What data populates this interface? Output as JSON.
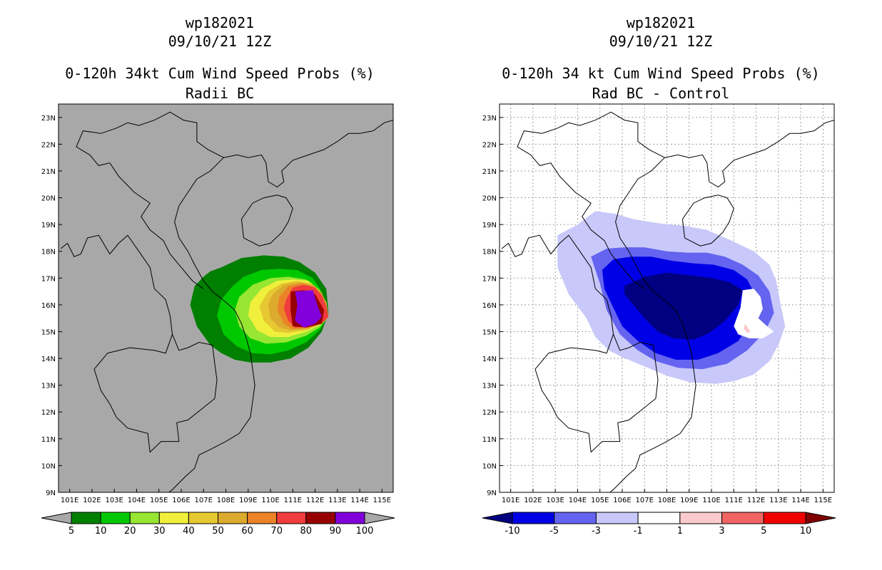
{
  "chart_data": [
    {
      "type": "heatmap",
      "panel": "left",
      "title_lines": [
        "wp182021",
        "09/10/21 12Z",
        "0-120h 34kt Cum Wind Speed Probs (%)",
        "Radii BC"
      ],
      "xlabels": [
        "101E",
        "102E",
        "103E",
        "104E",
        "105E",
        "106E",
        "107E",
        "108E",
        "109E",
        "110E",
        "111E",
        "112E",
        "113E",
        "114E",
        "115E"
      ],
      "ylabels": [
        "9N",
        "10N",
        "11N",
        "12N",
        "13N",
        "14N",
        "15N",
        "16N",
        "17N",
        "18N",
        "19N",
        "20N",
        "21N",
        "22N",
        "23N"
      ],
      "xlim": [
        100.5,
        115.5
      ],
      "ylim": [
        9,
        23.5
      ],
      "grid": false,
      "background": "#a8a8a8",
      "colorbar": {
        "labels": [
          "5",
          "10",
          "20",
          "30",
          "40",
          "50",
          "60",
          "70",
          "80",
          "90",
          "100"
        ],
        "colors": [
          "#007f00",
          "#00c800",
          "#96e632",
          "#f0f03c",
          "#e6c832",
          "#dcaa2d",
          "#eb8228",
          "#f03c3c",
          "#960000",
          "#8200dc"
        ],
        "end_color": "#a8a8a8"
      },
      "levels": [
        {
          "level": 5,
          "color": "#007f00",
          "lon": [
            107.8,
            108.7,
            109.7,
            110.6,
            111.3,
            112.0,
            112.5,
            112.6,
            112.3,
            111.7,
            110.9,
            110.0,
            109.1,
            108.4,
            107.8,
            107.3,
            106.7,
            106.4,
            106.6,
            107.0,
            107.3,
            107.8
          ],
          "lat": [
            17.4,
            17.75,
            17.85,
            17.8,
            17.6,
            17.2,
            16.6,
            15.7,
            15.0,
            14.4,
            14.0,
            13.85,
            13.85,
            13.95,
            14.2,
            14.5,
            15.2,
            16.0,
            16.7,
            17.05,
            17.25,
            17.4
          ]
        },
        {
          "level": 10,
          "color": "#00c800",
          "lon": [
            108.8,
            109.6,
            110.4,
            111.2,
            111.9,
            112.3,
            112.6,
            112.2,
            111.6,
            110.8,
            110.0,
            109.2,
            108.5,
            107.9,
            107.6,
            107.8,
            108.3,
            108.8
          ],
          "lat": [
            17.05,
            17.3,
            17.35,
            17.3,
            17.0,
            16.5,
            15.6,
            15.05,
            14.6,
            14.3,
            14.15,
            14.2,
            14.45,
            14.9,
            15.6,
            16.2,
            16.7,
            17.05
          ]
        },
        {
          "level": 20,
          "color": "#96e632",
          "lon": [
            109.2,
            110.0,
            110.8,
            111.6,
            112.1,
            112.5,
            112.6,
            112.2,
            111.6,
            110.7,
            109.8,
            109.1,
            108.6,
            108.4,
            108.6,
            109.2
          ],
          "lat": [
            16.75,
            17.0,
            17.05,
            16.95,
            16.6,
            16.0,
            15.55,
            15.15,
            14.85,
            14.6,
            14.55,
            14.75,
            15.2,
            15.8,
            16.3,
            16.75
          ]
        },
        {
          "level": 30,
          "color": "#f0f03c",
          "lon": [
            109.6,
            110.3,
            111.0,
            111.7,
            112.2,
            112.5,
            112.6,
            112.2,
            111.6,
            110.8,
            110.0,
            109.4,
            109.0,
            109.1,
            109.6
          ],
          "lat": [
            16.6,
            16.9,
            16.95,
            16.9,
            16.55,
            16.1,
            15.55,
            15.25,
            15.0,
            14.8,
            14.8,
            15.05,
            15.6,
            16.1,
            16.6
          ]
        },
        {
          "level": 40,
          "color": "#e6c832",
          "lon": [
            109.9,
            110.5,
            111.2,
            111.8,
            112.2,
            112.5,
            112.6,
            112.2,
            111.6,
            110.8,
            110.2,
            109.7,
            109.5,
            109.9
          ],
          "lat": [
            16.5,
            16.8,
            16.9,
            16.8,
            16.5,
            16.1,
            15.55,
            15.3,
            15.05,
            14.95,
            15.0,
            15.4,
            15.95,
            16.5
          ]
        },
        {
          "level": 50,
          "color": "#dcaa2d",
          "lon": [
            110.1,
            110.6,
            111.3,
            111.9,
            112.3,
            112.5,
            112.6,
            112.3,
            111.7,
            110.9,
            110.4,
            110.0,
            109.9,
            110.1
          ],
          "lat": [
            16.4,
            16.75,
            16.85,
            16.75,
            16.45,
            16.05,
            15.55,
            15.3,
            15.1,
            15.05,
            15.15,
            15.5,
            16.0,
            16.4
          ]
        },
        {
          "level": 60,
          "color": "#eb8228",
          "lon": [
            110.4,
            110.8,
            111.4,
            111.9,
            112.3,
            112.5,
            112.6,
            112.3,
            111.7,
            111.0,
            110.6,
            110.3,
            110.4
          ],
          "lat": [
            16.3,
            16.7,
            16.8,
            16.7,
            16.4,
            16.0,
            15.55,
            15.3,
            15.15,
            15.1,
            15.3,
            15.8,
            16.3
          ]
        },
        {
          "level": 70,
          "color": "#f03c3c",
          "lon": [
            110.7,
            111.0,
            111.5,
            112.0,
            112.3,
            112.5,
            112.6,
            112.3,
            111.8,
            111.1,
            110.8,
            110.6,
            110.7
          ],
          "lat": [
            16.2,
            16.65,
            16.75,
            16.65,
            16.35,
            15.95,
            15.55,
            15.3,
            15.2,
            15.15,
            15.4,
            15.85,
            16.2
          ]
        },
        {
          "level": 80,
          "color": "#960000",
          "lon": [
            110.9,
            111.5,
            112.0,
            112.4,
            112.3,
            111.6,
            111.0,
            110.9,
            110.9
          ],
          "lat": [
            16.5,
            16.55,
            16.4,
            15.8,
            15.3,
            15.15,
            15.2,
            15.8,
            16.5
          ]
        },
        {
          "level": 90,
          "color": "#8200dc",
          "lon": [
            111.1,
            111.9,
            112.1,
            112.3,
            112.0,
            111.5,
            111.1,
            111.2,
            111.1
          ],
          "lat": [
            16.5,
            16.55,
            16.0,
            15.55,
            15.3,
            15.15,
            15.4,
            16.0,
            16.5
          ]
        }
      ]
    },
    {
      "type": "heatmap",
      "panel": "right",
      "title_lines": [
        "wp182021",
        "09/10/21 12Z",
        "0-120h 34 kt Cum Wind Speed Probs (%)",
        "Rad BC - Control"
      ],
      "xlabels": [
        "101E",
        "102E",
        "103E",
        "104E",
        "105E",
        "106E",
        "107E",
        "108E",
        "109E",
        "110E",
        "111E",
        "112E",
        "113E",
        "114E",
        "115E"
      ],
      "ylabels": [
        "9N",
        "10N",
        "11N",
        "12N",
        "13N",
        "14N",
        "15N",
        "16N",
        "17N",
        "18N",
        "19N",
        "20N",
        "21N",
        "22N",
        "23N"
      ],
      "xlim": [
        100.5,
        115.5
      ],
      "ylim": [
        9,
        23.5
      ],
      "grid": true,
      "background": "#ffffff",
      "colorbar": {
        "labels": [
          "-10",
          "-5",
          "-3",
          "-1",
          "1",
          "3",
          "5",
          "10"
        ],
        "colors": [
          "#0000e6",
          "#6464f0",
          "#c8c8fa",
          "#ffffff",
          "#facacc",
          "#f06464",
          "#f00000"
        ],
        "low_end_color": "#000080",
        "high_end_color": "#800000"
      },
      "levels": [
        {
          "level": -1,
          "color": "#c8c8fa",
          "lon": [
            104.0,
            104.8,
            105.7,
            106.5,
            107.6,
            108.8,
            109.8,
            110.9,
            111.9,
            112.6,
            112.9,
            113.1,
            113.3,
            113.0,
            112.6,
            111.9,
            111.0,
            110.2,
            109.1,
            108.0,
            107.0,
            106.0,
            105.4,
            104.8,
            104.4,
            103.6,
            103.1,
            103.1,
            104.0
          ],
          "lat": [
            19.0,
            19.5,
            19.4,
            19.2,
            19.05,
            18.95,
            18.8,
            18.4,
            18.0,
            17.5,
            16.9,
            16.0,
            15.2,
            14.5,
            13.9,
            13.4,
            13.15,
            13.05,
            13.1,
            13.35,
            13.7,
            14.05,
            14.3,
            14.8,
            15.5,
            16.4,
            17.4,
            18.6,
            19.0
          ]
        },
        {
          "level": -3,
          "color": "#6464f0",
          "lon": [
            104.6,
            105.3,
            106.1,
            107.0,
            108.0,
            108.9,
            109.8,
            110.6,
            111.4,
            112.1,
            112.6,
            112.8,
            112.4,
            111.6,
            110.7,
            109.6,
            108.5,
            107.5,
            106.7,
            105.9,
            105.3,
            105.0,
            104.6
          ],
          "lat": [
            17.8,
            18.1,
            18.15,
            18.15,
            18.0,
            17.95,
            17.95,
            17.8,
            17.5,
            17.1,
            16.5,
            15.7,
            15.0,
            14.3,
            13.8,
            13.6,
            13.65,
            13.9,
            14.3,
            14.9,
            15.8,
            16.8,
            17.8
          ]
        },
        {
          "level": -5,
          "color": "#0000e6",
          "lon": [
            105.1,
            105.6,
            106.4,
            107.3,
            108.2,
            109.2,
            110.1,
            111.0,
            111.6,
            112.0,
            111.8,
            111.2,
            110.3,
            109.4,
            108.4,
            107.5,
            106.7,
            106.0,
            105.6,
            105.2,
            105.1
          ],
          "lat": [
            17.3,
            17.7,
            17.8,
            17.8,
            17.65,
            17.55,
            17.5,
            17.3,
            16.95,
            16.3,
            15.4,
            14.65,
            14.2,
            13.95,
            13.95,
            14.2,
            14.65,
            15.2,
            15.9,
            16.6,
            17.3
          ]
        },
        {
          "level": -10,
          "color": "#000080",
          "lon": [
            106.1,
            107.0,
            108.0,
            109.1,
            110.0,
            110.8,
            111.4,
            111.2,
            110.6,
            109.9,
            109.2,
            108.3,
            107.6,
            107.0,
            106.5,
            106.1,
            106.1
          ],
          "lat": [
            16.7,
            17.05,
            17.2,
            17.1,
            17.0,
            16.85,
            16.55,
            16.0,
            15.4,
            14.95,
            14.7,
            14.75,
            15.0,
            15.5,
            16.0,
            16.4,
            16.7
          ]
        },
        {
          "level": 1,
          "color": "#ffffff",
          "lon": [
            111.4,
            111.9,
            112.2,
            112.3,
            112.1,
            112.5,
            112.8,
            112.3,
            111.7,
            111.2,
            111.0,
            111.3,
            111.4
          ],
          "lat": [
            16.55,
            16.6,
            16.3,
            15.85,
            15.5,
            15.2,
            15.0,
            14.75,
            14.75,
            14.9,
            15.2,
            15.9,
            16.55
          ]
        },
        {
          "level": 3,
          "color": "#facacc",
          "lon": [
            111.5,
            111.75,
            111.6,
            111.45,
            111.5
          ],
          "lat": [
            15.3,
            15.0,
            14.95,
            15.1,
            15.3
          ]
        }
      ]
    }
  ],
  "coastline": [
    [
      [
        100.6,
        18.1
      ],
      [
        100.9,
        18.3
      ],
      [
        101.2,
        17.8
      ],
      [
        101.5,
        17.9
      ],
      [
        101.8,
        18.5
      ],
      [
        102.3,
        18.6
      ],
      [
        102.8,
        17.9
      ],
      [
        103.2,
        18.3
      ],
      [
        103.6,
        18.6
      ],
      [
        104.1,
        18.0
      ],
      [
        104.6,
        17.4
      ],
      [
        104.8,
        16.6
      ],
      [
        105.3,
        16.2
      ],
      [
        105.5,
        15.6
      ],
      [
        105.6,
        14.9
      ],
      [
        105.9,
        14.3
      ],
      [
        106.3,
        14.4
      ],
      [
        106.8,
        14.6
      ],
      [
        107.4,
        14.5
      ],
      [
        107.5,
        13.8
      ],
      [
        107.6,
        13.2
      ],
      [
        107.5,
        12.5
      ],
      [
        106.9,
        12.1
      ],
      [
        106.3,
        11.7
      ],
      [
        105.8,
        11.6
      ],
      [
        105.9,
        10.9
      ],
      [
        105.1,
        10.9
      ],
      [
        104.6,
        10.5
      ],
      [
        104.5,
        11.2
      ],
      [
        103.6,
        11.4
      ],
      [
        103.1,
        11.8
      ],
      [
        102.8,
        12.3
      ],
      [
        102.4,
        12.8
      ],
      [
        102.1,
        13.6
      ],
      [
        102.7,
        14.2
      ],
      [
        103.7,
        14.4
      ],
      [
        104.8,
        14.3
      ],
      [
        105.3,
        14.2
      ],
      [
        105.6,
        14.9
      ]
    ],
    [
      [
        101.9,
        21.6
      ],
      [
        101.3,
        21.9
      ],
      [
        101.6,
        22.5
      ],
      [
        102.4,
        22.4
      ],
      [
        103.1,
        22.6
      ],
      [
        103.6,
        22.8
      ],
      [
        104.1,
        22.7
      ],
      [
        104.8,
        22.9
      ],
      [
        105.5,
        23.2
      ],
      [
        106.1,
        22.9
      ],
      [
        106.7,
        22.8
      ],
      [
        106.7,
        22.1
      ],
      [
        107.2,
        21.8
      ],
      [
        107.9,
        21.5
      ]
    ],
    [
      [
        101.9,
        21.6
      ],
      [
        102.3,
        21.2
      ],
      [
        102.8,
        21.3
      ],
      [
        103.2,
        20.8
      ],
      [
        103.9,
        20.2
      ],
      [
        104.6,
        19.8
      ],
      [
        104.2,
        19.3
      ],
      [
        104.6,
        18.8
      ],
      [
        105.2,
        18.4
      ],
      [
        105.5,
        17.9
      ],
      [
        106.0,
        17.4
      ],
      [
        106.5,
        16.9
      ],
      [
        107.0,
        16.6
      ]
    ],
    [
      [
        107.9,
        21.5
      ],
      [
        107.3,
        21.0
      ],
      [
        106.7,
        20.7
      ],
      [
        106.3,
        20.2
      ],
      [
        105.9,
        19.7
      ],
      [
        105.7,
        19.1
      ],
      [
        105.9,
        18.5
      ],
      [
        106.3,
        18.0
      ],
      [
        106.6,
        17.5
      ],
      [
        107.0,
        16.9
      ],
      [
        107.4,
        16.5
      ],
      [
        108.0,
        16.1
      ],
      [
        108.4,
        15.8
      ],
      [
        108.7,
        15.3
      ],
      [
        108.9,
        14.8
      ],
      [
        109.1,
        14.2
      ],
      [
        109.2,
        13.6
      ],
      [
        109.3,
        13.0
      ],
      [
        109.2,
        12.4
      ],
      [
        109.1,
        11.8
      ],
      [
        108.6,
        11.2
      ],
      [
        108.0,
        10.9
      ],
      [
        107.3,
        10.6
      ],
      [
        106.8,
        10.4
      ],
      [
        106.6,
        9.9
      ],
      [
        106.2,
        9.6
      ],
      [
        105.6,
        9.1
      ],
      [
        105.0,
        8.7
      ]
    ],
    [
      [
        107.9,
        21.5
      ],
      [
        108.5,
        21.6
      ],
      [
        109.0,
        21.5
      ],
      [
        109.6,
        21.6
      ],
      [
        109.8,
        21.3
      ],
      [
        109.9,
        20.6
      ],
      [
        110.3,
        20.4
      ],
      [
        110.6,
        20.6
      ],
      [
        110.5,
        21.0
      ],
      [
        111.0,
        21.4
      ],
      [
        111.7,
        21.6
      ],
      [
        112.4,
        21.8
      ],
      [
        113.0,
        22.1
      ],
      [
        113.5,
        22.4
      ],
      [
        114.0,
        22.4
      ],
      [
        114.6,
        22.5
      ],
      [
        115.1,
        22.8
      ],
      [
        115.5,
        22.9
      ]
    ],
    [
      [
        108.8,
        18.5
      ],
      [
        108.7,
        19.2
      ],
      [
        109.2,
        19.8
      ],
      [
        109.7,
        20.0
      ],
      [
        110.3,
        20.1
      ],
      [
        110.7,
        20.0
      ],
      [
        111.0,
        19.6
      ],
      [
        110.8,
        19.1
      ],
      [
        110.5,
        18.7
      ],
      [
        110.0,
        18.3
      ],
      [
        109.5,
        18.2
      ],
      [
        108.8,
        18.5
      ]
    ]
  ]
}
